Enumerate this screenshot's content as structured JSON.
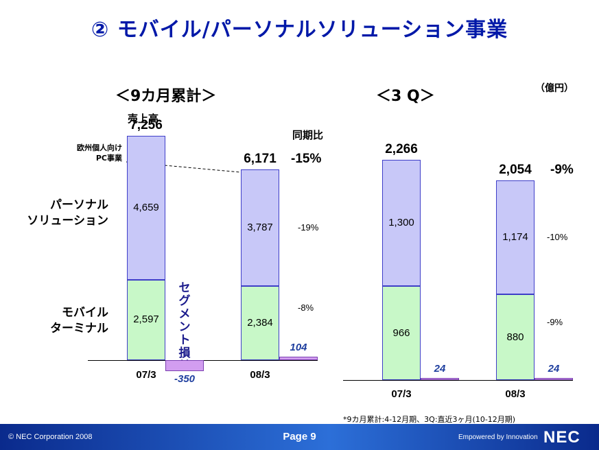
{
  "title": "② モバイル/パーソナルソリューション事業",
  "unit": "（億円）",
  "footnote": "*9カ月累計:4-12月期、3Q:直近3ヶ月(10-12月期)",
  "footer": {
    "copyright": "© NEC Corporation 2008",
    "page": "Page 9",
    "tagline": "Empowered by Innovation",
    "logo": "NEC"
  },
  "labels": {
    "sales": "売上高",
    "yoy": "同期比",
    "pc_note_line1": "欧州個人向け",
    "pc_note_line2": "PC事業",
    "segment_loss": "セグメント損益",
    "personal_line1": "パーソナル",
    "personal_line2": "ソリューション",
    "mobile_line1": "モバイル",
    "mobile_line2": "ターミナル"
  },
  "chart_data": [
    {
      "type": "bar",
      "title": "＜9カ月累計＞",
      "categories": [
        "07/3",
        "08/3"
      ],
      "series": [
        {
          "name": "モバイルターミナル",
          "values": [
            2597,
            2384
          ],
          "yoy": [
            null,
            "-8%"
          ]
        },
        {
          "name": "パーソナルソリューション",
          "values": [
            4659,
            3787
          ],
          "yoy": [
            null,
            "-19%"
          ]
        },
        {
          "name": "セグメント損益",
          "values": [
            -350,
            104
          ]
        }
      ],
      "totals": [
        "7,256",
        "6,171"
      ],
      "total_yoy": "-15%",
      "series_labels": {
        "mobile": [
          "2,597",
          "2,384"
        ],
        "personal": [
          "4,659",
          "3,787"
        ],
        "segment": [
          "-350",
          "104"
        ]
      }
    },
    {
      "type": "bar",
      "title": "＜3 Q＞",
      "categories": [
        "07/3",
        "08/3"
      ],
      "series": [
        {
          "name": "モバイルターミナル",
          "values": [
            966,
            880
          ],
          "yoy": [
            null,
            "-9%"
          ]
        },
        {
          "name": "パーソナルソリューション",
          "values": [
            1300,
            1174
          ],
          "yoy": [
            null,
            "-10%"
          ]
        },
        {
          "name": "セグメント損益",
          "values": [
            24,
            24
          ]
        }
      ],
      "totals": [
        "2,266",
        "2,054"
      ],
      "total_yoy": "-9%",
      "series_labels": {
        "mobile": [
          "966",
          "880"
        ],
        "personal": [
          "1,300",
          "1,174"
        ],
        "segment": [
          "24",
          "24"
        ]
      }
    }
  ]
}
